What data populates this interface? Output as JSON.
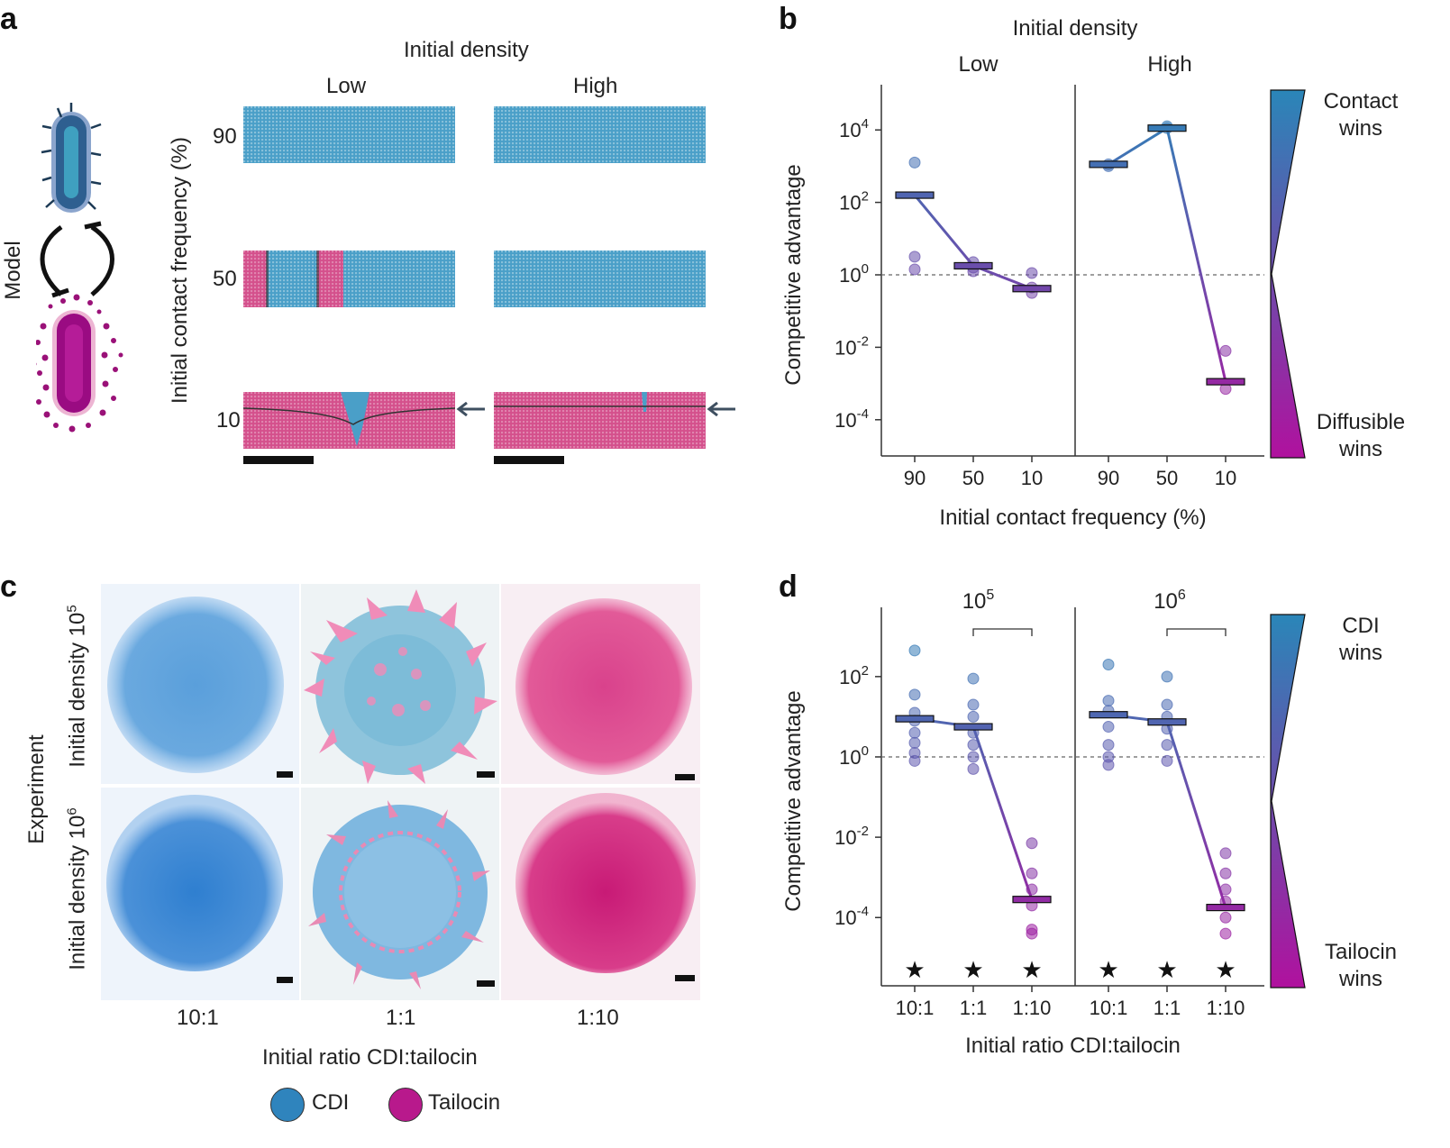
{
  "panels": {
    "a": "a",
    "b": "b",
    "c": "c",
    "d": "d"
  },
  "panel_a": {
    "model_label": "Model",
    "header": "Initial density",
    "col_low": "Low",
    "col_high": "High",
    "y_title": "Initial contact frequency (%)",
    "row_labels": [
      "90",
      "50",
      "10"
    ]
  },
  "panel_c": {
    "experiment_label": "Experiment",
    "row1_label_base": "Initial density 10",
    "row1_label_exp": "5",
    "row2_label_base": "Initial density 10",
    "row2_label_exp": "6",
    "col_labels": [
      "10:1",
      "1:1",
      "1:10"
    ],
    "x_title": "Initial ratio CDI:tailocin",
    "legend": [
      {
        "label": "CDI",
        "color": "#2f84bd"
      },
      {
        "label": "Tailocin",
        "color": "#b8198c"
      }
    ]
  },
  "colors": {
    "contact": "#2a86b8",
    "diffusible": "#b0119e",
    "dash": "#666666"
  },
  "chart_data": [
    {
      "panel": "b",
      "type": "scatter",
      "header": "Initial density",
      "facets": [
        "Low",
        "High"
      ],
      "title": "",
      "ylabel": "Competitive advantage",
      "xlabel": "Initial contact frequency (%)",
      "yscale": "log",
      "ylim_log10": [
        -5,
        5
      ],
      "yticks": [
        {
          "base": "10",
          "exp": "4",
          "v": 4
        },
        {
          "base": "10",
          "exp": "2",
          "v": 2
        },
        {
          "base": "10",
          "exp": "0",
          "v": 0
        },
        {
          "base": "10",
          "exp": "-2",
          "v": -2
        },
        {
          "base": "10",
          "exp": "-4",
          "v": -4
        }
      ],
      "categories": [
        "90",
        "50",
        "10"
      ],
      "gradient_top": [
        "Contact",
        "wins"
      ],
      "gradient_bottom": [
        "Diffusible",
        "wins"
      ],
      "series": [
        {
          "name": "Low",
          "median_log10": [
            2.2,
            0.25,
            -0.38
          ],
          "points_log10": [
            [
              3.1,
              0.5,
              0.15
            ],
            [
              0.35,
              0.2,
              0.1
            ],
            [
              0.05,
              -0.35,
              -0.5
            ]
          ]
        },
        {
          "name": "High",
          "median_log10": [
            3.05,
            4.05,
            -2.95
          ],
          "points_log10": [
            [
              3.05,
              3.0
            ],
            [
              4.1,
              4.05
            ],
            [
              -2.1,
              -3.15
            ]
          ]
        }
      ]
    },
    {
      "panel": "d",
      "type": "scatter",
      "facets": [
        {
          "base": "10",
          "exp": "5"
        },
        {
          "base": "10",
          "exp": "6"
        }
      ],
      "ylabel": "Competitive advantage",
      "xlabel": "Initial ratio CDI:tailocin",
      "yscale": "log",
      "ylim_log10": [
        -5.7,
        3.5
      ],
      "yticks": [
        {
          "base": "10",
          "exp": "2",
          "v": 2
        },
        {
          "base": "10",
          "exp": "0",
          "v": 0
        },
        {
          "base": "10",
          "exp": "-2",
          "v": -2
        },
        {
          "base": "10",
          "exp": "-4",
          "v": -4
        }
      ],
      "categories": [
        "10:1",
        "1:1",
        "1:10"
      ],
      "gradient_top": [
        "CDI",
        "wins"
      ],
      "gradient_bottom": [
        "Tailocin",
        "wins"
      ],
      "significance": [
        "★",
        "★",
        "★"
      ],
      "series": [
        {
          "name": "10^5",
          "median_log10": [
            0.95,
            0.75,
            -3.55
          ],
          "points_log10": [
            [
              2.65,
              1.55,
              1.1,
              0.9,
              0.6,
              0.35,
              0.1,
              -0.1
            ],
            [
              1.95,
              1.3,
              1.0,
              0.6,
              0.3,
              0.0,
              -0.3
            ],
            [
              -2.15,
              -2.9,
              -3.3,
              -3.7,
              -4.3,
              -4.4
            ]
          ]
        },
        {
          "name": "10^6",
          "median_log10": [
            1.05,
            0.87,
            -3.75
          ],
          "points_log10": [
            [
              2.3,
              1.4,
              1.15,
              0.75,
              0.3,
              0.0,
              -0.2
            ],
            [
              2.0,
              1.3,
              1.0,
              0.7,
              0.3,
              -0.1
            ],
            [
              -2.4,
              -2.9,
              -3.3,
              -3.6,
              -4.0,
              -4.4
            ]
          ]
        }
      ]
    }
  ]
}
